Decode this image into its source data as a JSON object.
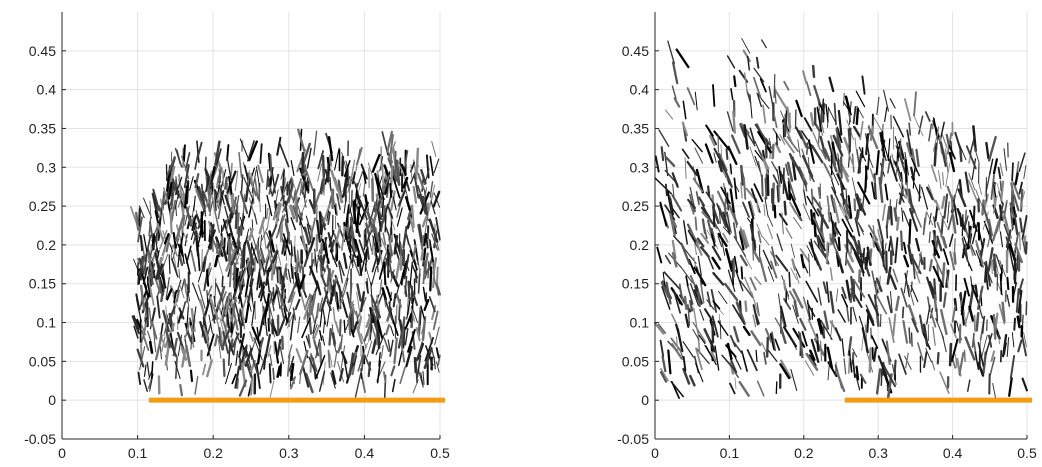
{
  "chart_data": [
    {
      "type": "scatter",
      "title": "",
      "xlabel": "",
      "ylabel": "",
      "xlim": [
        0,
        0.5
      ],
      "ylim": [
        -0.05,
        0.5
      ],
      "grid": true,
      "xticks": [
        "0",
        "0.1",
        "0.2",
        "0.3",
        "0.4",
        "0.5"
      ],
      "yticks": [
        "-0.05",
        "0",
        "0.05",
        "0.1",
        "0.15",
        "0.2",
        "0.25",
        "0.3",
        "0.35",
        "0.4",
        "0.45"
      ],
      "base_segment": {
        "x": [
          0.115,
          0.5
        ],
        "y": 0,
        "color": "#f39c12"
      },
      "texture": {
        "description_hidden": true,
        "x_range": [
          0.1,
          0.5
        ],
        "shape": "uniform-front",
        "front_height": 0.3,
        "front_height_right": 0.29,
        "sparse_left_edge": 0.02,
        "density": 1400
      }
    },
    {
      "type": "scatter",
      "title": "",
      "xlabel": "",
      "ylabel": "",
      "xlim": [
        0,
        0.5
      ],
      "ylim": [
        -0.05,
        0.5
      ],
      "grid": true,
      "xticks": [
        "0",
        "0.1",
        "0.2",
        "0.3",
        "0.4",
        "0.5"
      ],
      "yticks": [
        "-0.05",
        "0",
        "0.05",
        "0.1",
        "0.15",
        "0.2",
        "0.25",
        "0.3",
        "0.35",
        "0.4",
        "0.45"
      ],
      "base_segment": {
        "x": [
          0.255,
          0.5
        ],
        "y": 0,
        "color": "#f39c12"
      },
      "texture": {
        "description_hidden": true,
        "x_range": [
          0.0,
          0.5
        ],
        "shape": "leaning-front",
        "front_height": 0.47,
        "front_height_right": 0.29,
        "sparse_left_edge": 0.0,
        "density": 1200
      }
    }
  ],
  "colors": {
    "strokes": [
      "#000000",
      "#1a1a1a",
      "#2b2b2b",
      "#3d3d3d",
      "#555555",
      "#6e6e6e",
      "#8a8a8a"
    ],
    "base_segment": "#f39c12"
  }
}
